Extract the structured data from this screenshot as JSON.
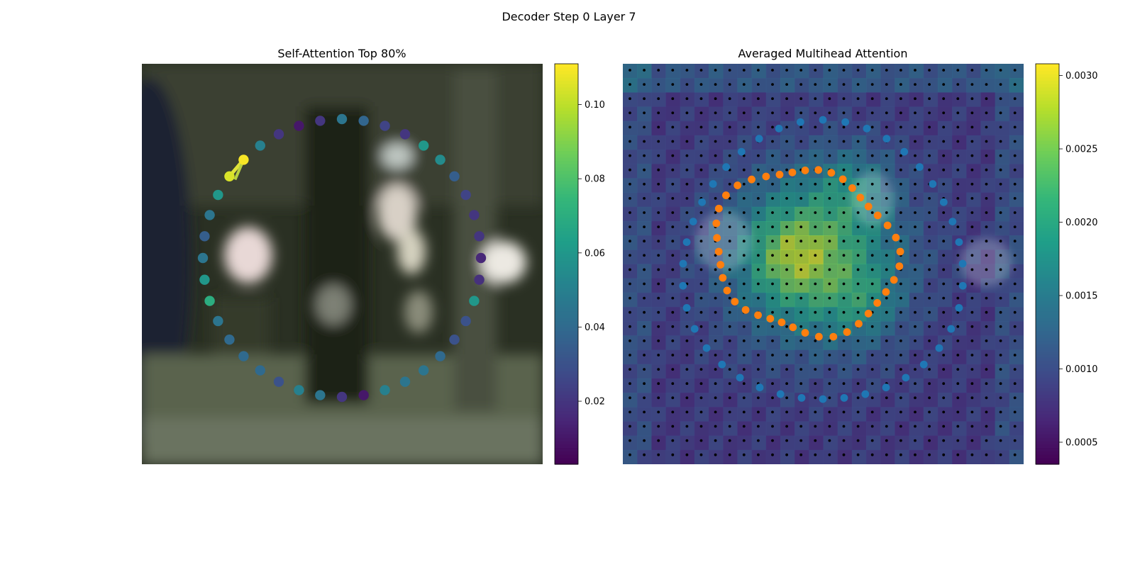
{
  "figure": {
    "title": "Decoder Step 0 Layer 7"
  },
  "chart_data": [
    {
      "type": "scatter",
      "title": "Self-Attention Top 80%",
      "xlabel": "",
      "ylabel": "",
      "grid": false,
      "colormap": "viridis",
      "colorbar": {
        "range": [
          0.003,
          0.111
        ],
        "ticks": [
          0.02,
          0.04,
          0.06,
          0.08,
          0.1
        ],
        "tick_labels": [
          "0.02",
          "0.04",
          "0.06",
          "0.08",
          "0.10"
        ]
      },
      "ring_points": 40,
      "attention_values": [
        0.105,
        0.11,
        0.05,
        0.02,
        0.01,
        0.02,
        0.045,
        0.038,
        0.025,
        0.02,
        0.06,
        0.055,
        0.035,
        0.025,
        0.02,
        0.02,
        0.015,
        0.018,
        0.06,
        0.03,
        0.03,
        0.04,
        0.045,
        0.045,
        0.05,
        0.01,
        0.02,
        0.045,
        0.05,
        0.03,
        0.04,
        0.04,
        0.04,
        0.045,
        0.07,
        0.06,
        0.045,
        0.035,
        0.045,
        0.06
      ],
      "highlight_link": [
        0,
        1
      ],
      "background": "blurred street scene photo"
    },
    {
      "type": "heatmap",
      "title": "Averaged Multihead Attention",
      "xlabel": "",
      "ylabel": "",
      "colormap": "viridis",
      "colorbar": {
        "range": [
          0.00035,
          0.00308
        ],
        "ticks": [
          0.0005,
          0.001,
          0.0015,
          0.002,
          0.0025,
          0.003
        ],
        "tick_labels": [
          "0.0005",
          "0.0010",
          "0.0015",
          "0.0020",
          "0.0025",
          "0.0030"
        ]
      },
      "grid_size": [
        28,
        28
      ],
      "overlays": [
        {
          "name": "reference-grid",
          "marker": "black dot",
          "color": "#000000"
        },
        {
          "name": "outer-ring",
          "marker": "circle",
          "color": "#1f77b4",
          "points": 40
        },
        {
          "name": "predicted-contour",
          "marker": "circle",
          "color": "#ff7f0e",
          "points": 40
        }
      ]
    }
  ]
}
